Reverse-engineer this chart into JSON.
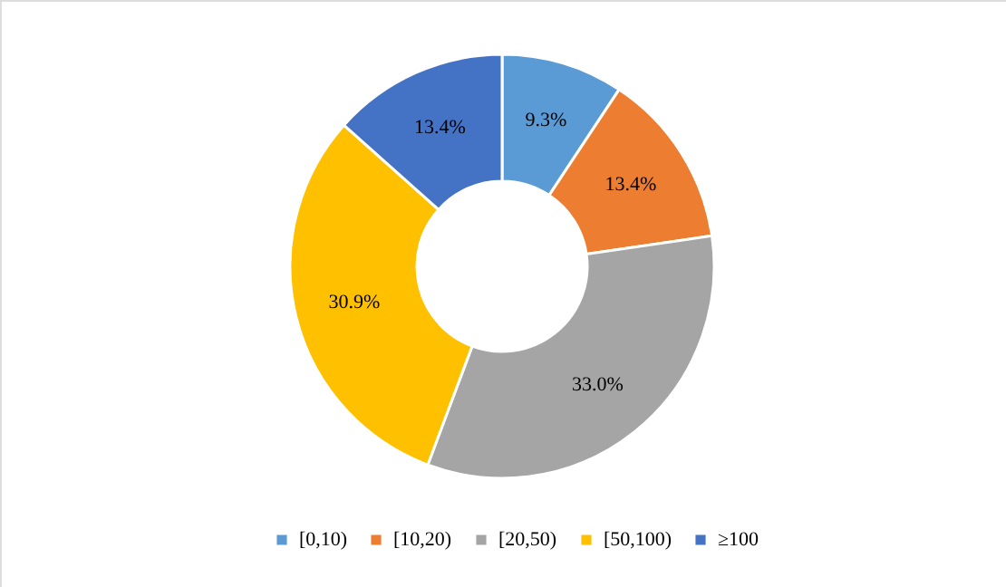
{
  "chart_data": {
    "type": "donut",
    "categories": [
      "[0,10)",
      "[10,20)",
      "[20,50)",
      "[50,100)",
      "≥100"
    ],
    "values": [
      9.3,
      13.4,
      33.0,
      30.9,
      13.4
    ],
    "value_labels": [
      "9.3%",
      "13.4%",
      "33.0%",
      "30.9%",
      "13.4%"
    ],
    "colors": [
      "#5b9bd5",
      "#ed7d31",
      "#a5a5a5",
      "#ffc000",
      "#4472c4"
    ],
    "legend": "bottom"
  }
}
